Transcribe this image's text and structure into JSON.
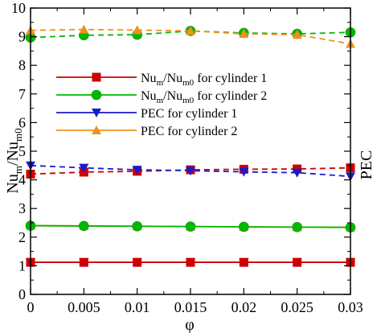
{
  "chart_data": {
    "type": "line",
    "x": [
      0,
      0.005,
      0.01,
      0.015,
      0.02,
      0.025,
      0.03
    ],
    "x_tick_labels": [
      "0",
      "0.005",
      "0.01",
      "0.015",
      "0.02",
      "0.025",
      "0.03"
    ],
    "xlim": [
      0,
      0.03
    ],
    "ylim": [
      0,
      10
    ],
    "y_ticks": [
      0,
      1,
      2,
      3,
      4,
      5,
      6,
      7,
      8,
      9,
      10
    ],
    "y2lim": [
      0,
      10
    ],
    "y2_ticks": [
      0,
      1,
      2,
      3,
      4,
      5,
      6,
      7,
      8,
      9,
      10
    ],
    "xlabel": "φ",
    "ylabel_main": "Nu",
    "ylabel_sub1": "m",
    "ylabel_mid": "/Nu",
    "ylabel_sub2": "m0",
    "y2label": "PEC",
    "grid": false,
    "legend_position": "upper-left",
    "series": [
      {
        "name": "Nu_m/Nu_m0 for cylinder 1",
        "legend_main": "Nu",
        "legend_sub1": "m",
        "legend_mid": "/Nu",
        "legend_sub2": "m0",
        "legend_tail": " for cylinder 1",
        "color": "#cc0000",
        "marker": "square",
        "style": "solid",
        "values": [
          1.12,
          1.12,
          1.12,
          1.12,
          1.12,
          1.12,
          1.12
        ]
      },
      {
        "name": "Nu_m/Nu_m0 for cylinder 2",
        "legend_main": "Nu",
        "legend_sub1": "m",
        "legend_mid": "/Nu",
        "legend_sub2": "m0",
        "legend_tail": " for cylinder 2",
        "color": "#00b800",
        "marker": "circle",
        "style": "solid",
        "values": [
          2.4,
          2.39,
          2.38,
          2.37,
          2.36,
          2.35,
          2.34
        ]
      },
      {
        "name": "PEC for cylinder 1",
        "legend_text": "PEC for cylinder 1",
        "color": "#1a1acc",
        "marker": "triangle-down",
        "style": "solid",
        "values": [
          1.12,
          1.12,
          1.12,
          1.12,
          1.12,
          1.12,
          1.12
        ]
      },
      {
        "name": "PEC for cylinder 2",
        "legend_text": "PEC for cylinder 2",
        "color": "#f0901e",
        "marker": "triangle-up",
        "style": "solid",
        "values": [
          2.4,
          2.39,
          2.38,
          2.37,
          2.36,
          2.35,
          2.34
        ]
      }
    ],
    "dashed_series": [
      {
        "color": "#cc0000",
        "marker": "square",
        "values": [
          4.2,
          4.27,
          4.3,
          4.35,
          4.37,
          4.38,
          4.42
        ]
      },
      {
        "color": "#00b800",
        "marker": "circle",
        "values": [
          8.97,
          9.05,
          9.07,
          9.2,
          9.13,
          9.1,
          9.15
        ]
      },
      {
        "color": "#1a1acc",
        "marker": "triangle-down",
        "values": [
          4.5,
          4.42,
          4.35,
          4.32,
          4.28,
          4.25,
          4.12
        ]
      },
      {
        "color": "#f0901e",
        "marker": "triangle-up",
        "values": [
          9.22,
          9.25,
          9.23,
          9.2,
          9.1,
          9.07,
          8.75
        ]
      }
    ]
  }
}
